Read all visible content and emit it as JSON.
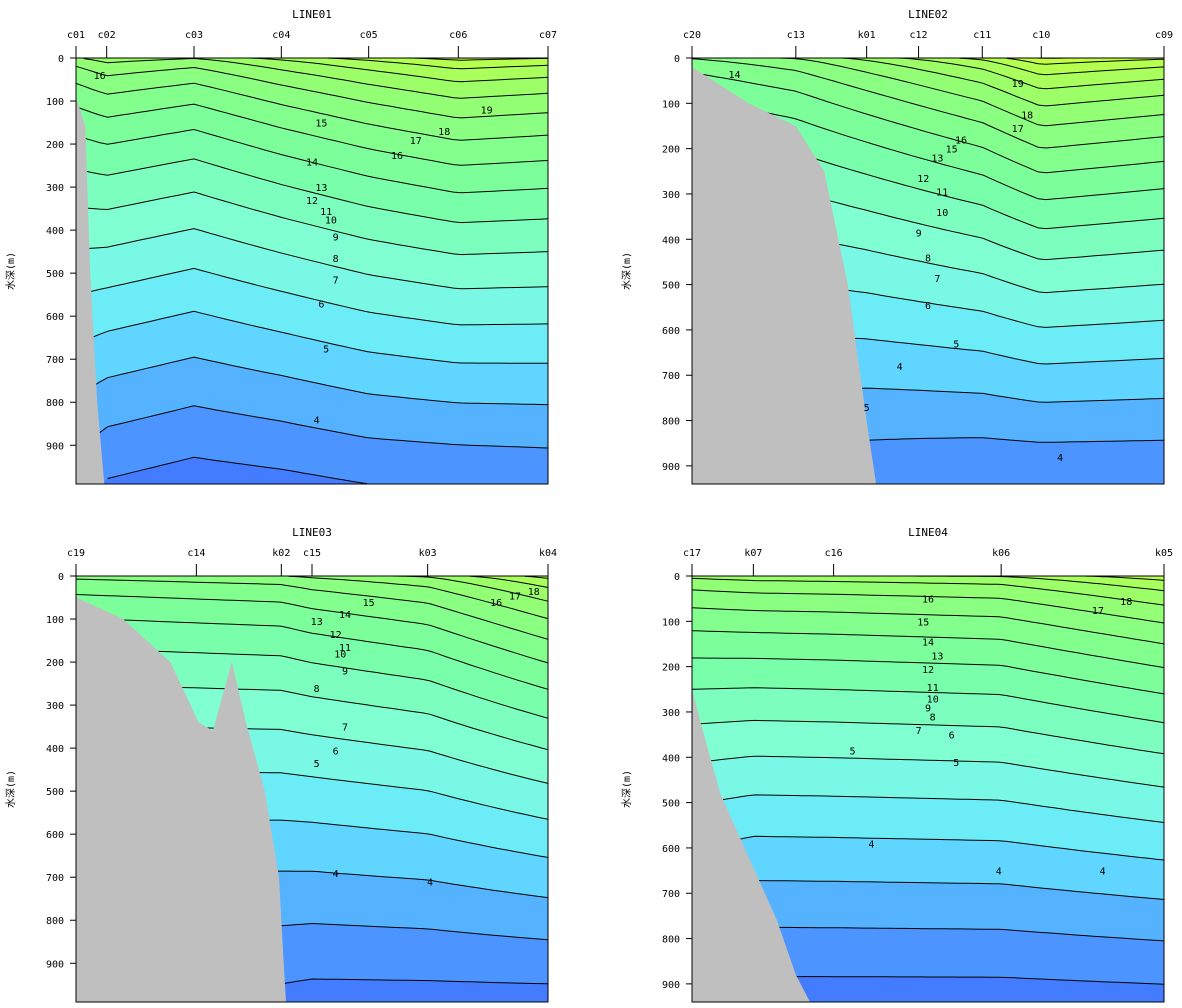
{
  "chart_data": [
    {
      "type": "contour",
      "title": "LINE01",
      "ylabel": "水深(m)",
      "yticks": [
        0,
        100,
        200,
        300,
        400,
        500,
        600,
        700,
        800,
        900
      ],
      "ylim": [
        0,
        990
      ],
      "stations": [
        "c01",
        "c02",
        "c03",
        "c04",
        "c05",
        "c06",
        "c07"
      ],
      "station_positions": [
        0.0,
        0.065,
        0.25,
        0.435,
        0.62,
        0.81,
        1.0
      ],
      "surface_values": [
        16,
        16.8,
        16.2,
        17.5,
        18.6,
        19.6,
        19.2
      ],
      "bottom_values": [
        4.5,
        3.9,
        3.5,
        3.7,
        4.0,
        4.1,
        4.2
      ],
      "seabed_right_x": [
        0.0,
        0.02,
        0.03,
        0.045,
        0.06
      ],
      "seabed_depth": [
        90,
        160,
        500,
        800,
        990
      ],
      "contour_labels": [
        {
          "text": "16",
          "x": 0.05,
          "y": 40
        },
        {
          "text": "19",
          "x": 0.87,
          "y": 120
        },
        {
          "text": "15",
          "x": 0.52,
          "y": 150
        },
        {
          "text": "17",
          "x": 0.72,
          "y": 190
        },
        {
          "text": "18",
          "x": 0.78,
          "y": 170
        },
        {
          "text": "16",
          "x": 0.68,
          "y": 225
        },
        {
          "text": "14",
          "x": 0.5,
          "y": 240
        },
        {
          "text": "13",
          "x": 0.52,
          "y": 300
        },
        {
          "text": "12",
          "x": 0.5,
          "y": 330
        },
        {
          "text": "11",
          "x": 0.53,
          "y": 355
        },
        {
          "text": "10",
          "x": 0.54,
          "y": 375
        },
        {
          "text": "9",
          "x": 0.55,
          "y": 415
        },
        {
          "text": "8",
          "x": 0.55,
          "y": 465
        },
        {
          "text": "7",
          "x": 0.55,
          "y": 515
        },
        {
          "text": "6",
          "x": 0.52,
          "y": 570
        },
        {
          "text": "5",
          "x": 0.53,
          "y": 675
        },
        {
          "text": "4",
          "x": 0.51,
          "y": 840
        }
      ]
    },
    {
      "type": "contour",
      "title": "LINE02",
      "ylabel": "水深(m)",
      "yticks": [
        0,
        100,
        200,
        300,
        400,
        500,
        600,
        700,
        800,
        900
      ],
      "ylim": [
        0,
        940
      ],
      "stations": [
        "c20",
        "c13",
        "k01",
        "c12",
        "c11",
        "c10",
        "c09"
      ],
      "station_positions": [
        0.0,
        0.22,
        0.37,
        0.48,
        0.615,
        0.74,
        1.0
      ],
      "surface_values": [
        14.2,
        15.2,
        16.5,
        17.4,
        18.5,
        20.2,
        19.4
      ],
      "bottom_values": [
        4.5,
        4.5,
        4.2,
        4.1,
        4.0,
        4.0,
        4.0
      ],
      "seabed_right_x": [
        0.0,
        0.12,
        0.22,
        0.28,
        0.33,
        0.37,
        0.39
      ],
      "seabed_depth": [
        20,
        100,
        150,
        250,
        500,
        800,
        940
      ],
      "contour_labels": [
        {
          "text": "14",
          "x": 0.09,
          "y": 35
        },
        {
          "text": "19",
          "x": 0.69,
          "y": 55
        },
        {
          "text": "18",
          "x": 0.71,
          "y": 125
        },
        {
          "text": "17",
          "x": 0.69,
          "y": 155
        },
        {
          "text": "16",
          "x": 0.57,
          "y": 180
        },
        {
          "text": "15",
          "x": 0.55,
          "y": 200
        },
        {
          "text": "13",
          "x": 0.52,
          "y": 220
        },
        {
          "text": "12",
          "x": 0.49,
          "y": 265
        },
        {
          "text": "11",
          "x": 0.53,
          "y": 295
        },
        {
          "text": "10",
          "x": 0.53,
          "y": 340
        },
        {
          "text": "9",
          "x": 0.48,
          "y": 385
        },
        {
          "text": "8",
          "x": 0.5,
          "y": 440
        },
        {
          "text": "7",
          "x": 0.52,
          "y": 485
        },
        {
          "text": "6",
          "x": 0.5,
          "y": 545
        },
        {
          "text": "5",
          "x": 0.56,
          "y": 630
        },
        {
          "text": "4",
          "x": 0.44,
          "y": 680
        },
        {
          "text": "5",
          "x": 0.37,
          "y": 770
        },
        {
          "text": "4",
          "x": 0.78,
          "y": 880
        }
      ]
    },
    {
      "type": "contour",
      "title": "LINE03",
      "ylabel": "水深(m)",
      "yticks": [
        0,
        100,
        200,
        300,
        400,
        500,
        600,
        700,
        800,
        900
      ],
      "ylim": [
        0,
        990
      ],
      "stations": [
        "c19",
        "c14",
        "k02",
        "c15",
        "k03",
        "k04"
      ],
      "station_positions": [
        0.0,
        0.255,
        0.435,
        0.5,
        0.745,
        1.0
      ],
      "surface_values": [
        14.5,
        14.8,
        15.0,
        15.4,
        16.3,
        18.6
      ],
      "bottom_values": [
        4.0,
        3.8,
        3.7,
        3.6,
        3.6,
        3.6
      ],
      "seabed_right_x": [
        0.0,
        0.1,
        0.2,
        0.26,
        0.29,
        0.33,
        0.36,
        0.4,
        0.43,
        0.44,
        0.445
      ],
      "seabed_depth": [
        50,
        100,
        200,
        340,
        360,
        200,
        340,
        500,
        700,
        900,
        990
      ],
      "contour_labels": [
        {
          "text": "15",
          "x": 0.62,
          "y": 60
        },
        {
          "text": "16",
          "x": 0.89,
          "y": 60
        },
        {
          "text": "17",
          "x": 0.93,
          "y": 45
        },
        {
          "text": "18",
          "x": 0.97,
          "y": 35
        },
        {
          "text": "14",
          "x": 0.57,
          "y": 88
        },
        {
          "text": "13",
          "x": 0.51,
          "y": 105
        },
        {
          "text": "12",
          "x": 0.55,
          "y": 135
        },
        {
          "text": "11",
          "x": 0.57,
          "y": 165
        },
        {
          "text": "10",
          "x": 0.56,
          "y": 180
        },
        {
          "text": "9",
          "x": 0.57,
          "y": 220
        },
        {
          "text": "8",
          "x": 0.51,
          "y": 260
        },
        {
          "text": "7",
          "x": 0.57,
          "y": 350
        },
        {
          "text": "6",
          "x": 0.55,
          "y": 405
        },
        {
          "text": "5",
          "x": 0.51,
          "y": 435
        },
        {
          "text": "4",
          "x": 0.55,
          "y": 690
        },
        {
          "text": "4",
          "x": 0.75,
          "y": 710
        }
      ]
    },
    {
      "type": "contour",
      "title": "LINE04",
      "ylabel": "水深(m)",
      "yticks": [
        0,
        100,
        200,
        300,
        400,
        500,
        600,
        700,
        800,
        900
      ],
      "ylim": [
        0,
        940
      ],
      "stations": [
        "c17",
        "k07",
        "c16",
        "k06",
        "k05"
      ],
      "station_positions": [
        0.0,
        0.13,
        0.3,
        0.655,
        1.0
      ],
      "surface_values": [
        16.5,
        16.8,
        16.9,
        17.2,
        18.9
      ],
      "bottom_values": [
        4.0,
        3.5,
        3.5,
        3.5,
        3.6
      ],
      "seabed_right_x": [
        0.0,
        0.02,
        0.06,
        0.12,
        0.18,
        0.22,
        0.25
      ],
      "seabed_depth": [
        250,
        330,
        480,
        620,
        760,
        880,
        940
      ],
      "contour_labels": [
        {
          "text": "16",
          "x": 0.5,
          "y": 50
        },
        {
          "text": "17",
          "x": 0.86,
          "y": 75
        },
        {
          "text": "18",
          "x": 0.92,
          "y": 55
        },
        {
          "text": "15",
          "x": 0.49,
          "y": 100
        },
        {
          "text": "14",
          "x": 0.5,
          "y": 145
        },
        {
          "text": "13",
          "x": 0.52,
          "y": 175
        },
        {
          "text": "12",
          "x": 0.5,
          "y": 205
        },
        {
          "text": "11",
          "x": 0.51,
          "y": 245
        },
        {
          "text": "10",
          "x": 0.51,
          "y": 270
        },
        {
          "text": "9",
          "x": 0.5,
          "y": 290
        },
        {
          "text": "8",
          "x": 0.51,
          "y": 310
        },
        {
          "text": "7",
          "x": 0.48,
          "y": 340
        },
        {
          "text": "6",
          "x": 0.55,
          "y": 350
        },
        {
          "text": "5",
          "x": 0.34,
          "y": 385
        },
        {
          "text": "5",
          "x": 0.56,
          "y": 410
        },
        {
          "text": "4",
          "x": 0.38,
          "y": 590
        },
        {
          "text": "4",
          "x": 0.65,
          "y": 650
        },
        {
          "text": "4",
          "x": 0.87,
          "y": 650
        }
      ]
    }
  ]
}
